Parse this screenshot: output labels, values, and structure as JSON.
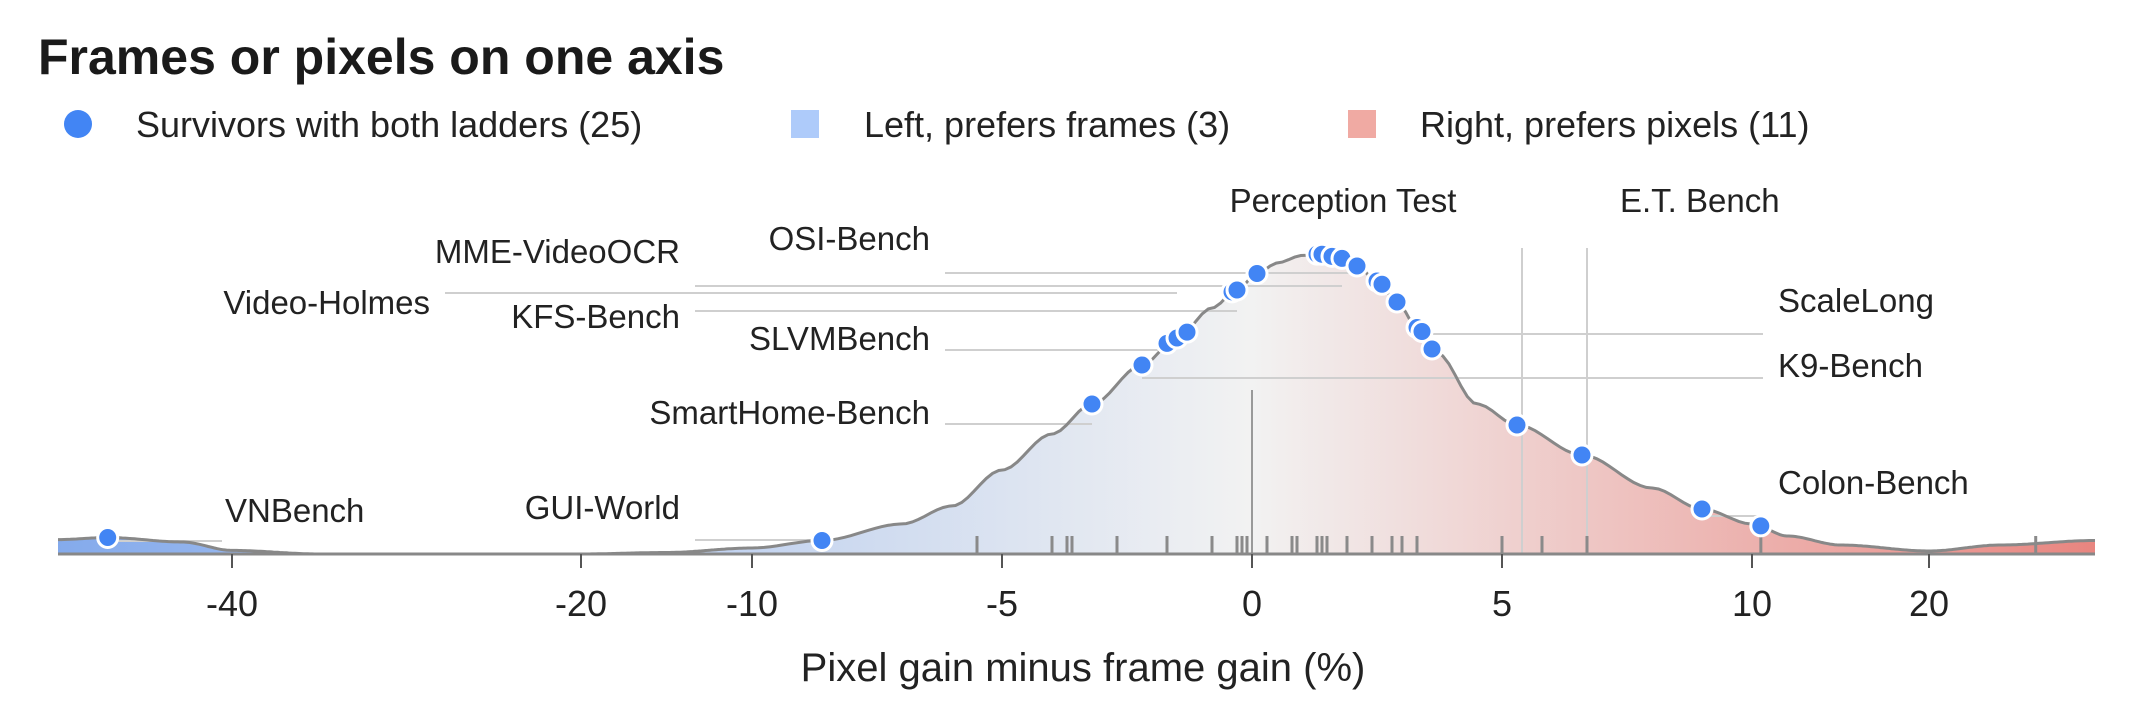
{
  "chart_data": {
    "type": "scatter",
    "title": "Frames or pixels on one axis",
    "xlabel": "Pixel gain minus frame gain (%)",
    "ylabel": "",
    "x_scale": "symlog",
    "xlim": [
      -47,
      27
    ],
    "xticks": [
      -40,
      -20,
      -10,
      -5,
      0,
      5,
      10,
      20
    ],
    "grid": false,
    "legend_position": "top-left",
    "legend": [
      {
        "label": "Survivors with both ladders (25)",
        "marker": "circle",
        "color": "#4285f4"
      },
      {
        "label": "Left, prefers frames (3)",
        "marker": "square",
        "color": "#aecbfa"
      },
      {
        "label": "Right, prefers pixels (11)",
        "marker": "square",
        "color": "#f0aaa3"
      }
    ],
    "points": [
      -45,
      -8.6,
      -3.2,
      -2.2,
      -1.7,
      -1.5,
      -1.3,
      -0.4,
      -0.3,
      0.1,
      1.3,
      1.4,
      1.6,
      1.8,
      2.1,
      2.5,
      2.6,
      2.9,
      3.3,
      3.4,
      3.6,
      5.3,
      6.6,
      9.0,
      10.5
    ],
    "rug": [
      -5.5,
      -4.0,
      -3.7,
      -3.6,
      -2.7,
      -1.7,
      -0.8,
      -0.3,
      -0.2,
      -0.1,
      0.3,
      0.8,
      0.9,
      1.3,
      1.4,
      1.5,
      1.9,
      2.4,
      2.8,
      3.0,
      3.3,
      5.0,
      5.8,
      6.7,
      10.5,
      24.5
    ],
    "density_knots": [
      [
        -47,
        0.048
      ],
      [
        -45,
        0.055
      ],
      [
        -42,
        0.04
      ],
      [
        -40,
        0.012
      ],
      [
        -35,
        0.0
      ],
      [
        -20,
        0.0
      ],
      [
        -15,
        0.005
      ],
      [
        -10,
        0.02
      ],
      [
        -8.6,
        0.045
      ],
      [
        -7,
        0.1
      ],
      [
        -6,
        0.16
      ],
      [
        -5,
        0.28
      ],
      [
        -4,
        0.4
      ],
      [
        -3.2,
        0.5
      ],
      [
        -2.2,
        0.63
      ],
      [
        -1.5,
        0.72
      ],
      [
        -0.8,
        0.82
      ],
      [
        -0.3,
        0.88
      ],
      [
        0.1,
        0.935
      ],
      [
        0.5,
        0.97
      ],
      [
        1.0,
        0.995
      ],
      [
        1.35,
        1.0
      ],
      [
        1.7,
        0.99
      ],
      [
        2.1,
        0.96
      ],
      [
        2.5,
        0.91
      ],
      [
        2.9,
        0.84
      ],
      [
        3.3,
        0.755
      ],
      [
        3.7,
        0.67
      ],
      [
        4.5,
        0.5
      ],
      [
        5.3,
        0.43
      ],
      [
        6.6,
        0.33
      ],
      [
        8,
        0.22
      ],
      [
        9,
        0.15
      ],
      [
        10,
        0.1
      ],
      [
        12,
        0.06
      ],
      [
        15,
        0.03
      ],
      [
        20,
        0.01
      ],
      [
        23,
        0.03
      ],
      [
        27,
        0.045
      ]
    ],
    "labeled_points": [
      {
        "label": "VNBench",
        "x": -45
      },
      {
        "label": "GUI-World",
        "x": -8.6
      },
      {
        "label": "SmartHome-Bench",
        "x": -3.2
      },
      {
        "label": "Video-Holmes",
        "x": -1.5
      },
      {
        "label": "SLVMBench",
        "x": -1.7
      },
      {
        "label": "KFS-Bench",
        "x": -0.3
      },
      {
        "label": "MME-VideoOCR",
        "x": 1.8
      },
      {
        "label": "OSI-Bench",
        "x": 2.1
      },
      {
        "label": "Perception Test",
        "x": 0
      },
      {
        "label": "E.T. Bench",
        "x": 5.3
      },
      {
        "label": "ScaleLong",
        "x": 3.4
      },
      {
        "label": "K9-Bench",
        "x": -2.2
      },
      {
        "label": "Colon-Bench",
        "x": 9.0
      }
    ]
  },
  "colors": {
    "point": "#4285f4",
    "frames": "#aecbfa",
    "pixels": "#f0aaa3",
    "fill_left": "#7fa7ec",
    "fill_mid": "#f2f2f2",
    "fill_right": "#e8807a",
    "curve": "#888888",
    "leader": "#cfcfcf"
  }
}
